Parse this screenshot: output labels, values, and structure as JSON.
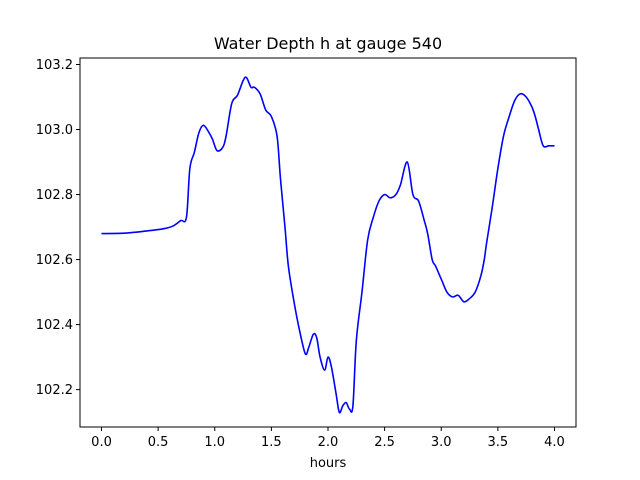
{
  "chart_data": {
    "type": "line",
    "title": "Water Depth h at gauge 540",
    "xlabel": "hours",
    "ylabel": "",
    "xlim": [
      -0.19,
      4.19
    ],
    "ylim": [
      102.085,
      103.22
    ],
    "xticks": [
      0.0,
      0.5,
      1.0,
      1.5,
      2.0,
      2.5,
      3.0,
      3.5,
      4.0
    ],
    "xtick_labels": [
      "0.0",
      "0.5",
      "1.0",
      "1.5",
      "2.0",
      "2.5",
      "3.0",
      "3.5",
      "4.0"
    ],
    "yticks": [
      102.2,
      102.4,
      102.6,
      102.8,
      103.0,
      103.2
    ],
    "ytick_labels": [
      "102.2",
      "102.4",
      "102.6",
      "102.8",
      "103.0",
      "103.2"
    ],
    "grid": false,
    "legend": false,
    "series": [
      {
        "color": "#0000ff",
        "x": [
          0.0,
          0.2,
          0.4,
          0.55,
          0.63,
          0.7,
          0.75,
          0.78,
          0.82,
          0.86,
          0.9,
          0.95,
          0.98,
          1.02,
          1.07,
          1.1,
          1.15,
          1.2,
          1.25,
          1.28,
          1.32,
          1.35,
          1.4,
          1.45,
          1.5,
          1.55,
          1.58,
          1.62,
          1.65,
          1.7,
          1.75,
          1.8,
          1.83,
          1.87,
          1.9,
          1.93,
          1.97,
          2.0,
          2.03,
          2.07,
          2.1,
          2.13,
          2.16,
          2.19,
          2.22,
          2.25,
          2.3,
          2.35,
          2.4,
          2.45,
          2.5,
          2.55,
          2.6,
          2.64,
          2.7,
          2.75,
          2.8,
          2.85,
          2.88,
          2.92,
          2.95,
          3.0,
          3.05,
          3.1,
          3.15,
          3.2,
          3.25,
          3.3,
          3.35,
          3.38,
          3.4,
          3.45,
          3.5,
          3.55,
          3.6,
          3.65,
          3.7,
          3.75,
          3.8,
          3.83,
          3.86,
          3.9,
          3.95,
          4.0
        ],
        "y": [
          102.68,
          102.681,
          102.688,
          102.695,
          102.703,
          102.72,
          102.73,
          102.88,
          102.93,
          102.99,
          103.013,
          102.99,
          102.97,
          102.935,
          102.945,
          102.98,
          103.08,
          103.105,
          103.15,
          103.16,
          103.13,
          103.13,
          103.11,
          103.06,
          103.04,
          102.98,
          102.85,
          102.7,
          102.58,
          102.47,
          102.38,
          102.31,
          102.33,
          102.37,
          102.36,
          102.3,
          102.26,
          102.3,
          102.27,
          102.19,
          102.13,
          102.15,
          102.16,
          102.14,
          102.15,
          102.35,
          102.5,
          102.66,
          102.73,
          102.78,
          102.8,
          102.79,
          102.8,
          102.83,
          102.9,
          102.8,
          102.78,
          102.72,
          102.68,
          102.6,
          102.58,
          102.54,
          102.5,
          102.485,
          102.49,
          102.47,
          102.48,
          102.5,
          102.55,
          102.6,
          102.65,
          102.76,
          102.88,
          102.98,
          103.04,
          103.09,
          103.11,
          103.1,
          103.07,
          103.04,
          103.0,
          102.95,
          102.95,
          102.95
        ]
      }
    ]
  }
}
